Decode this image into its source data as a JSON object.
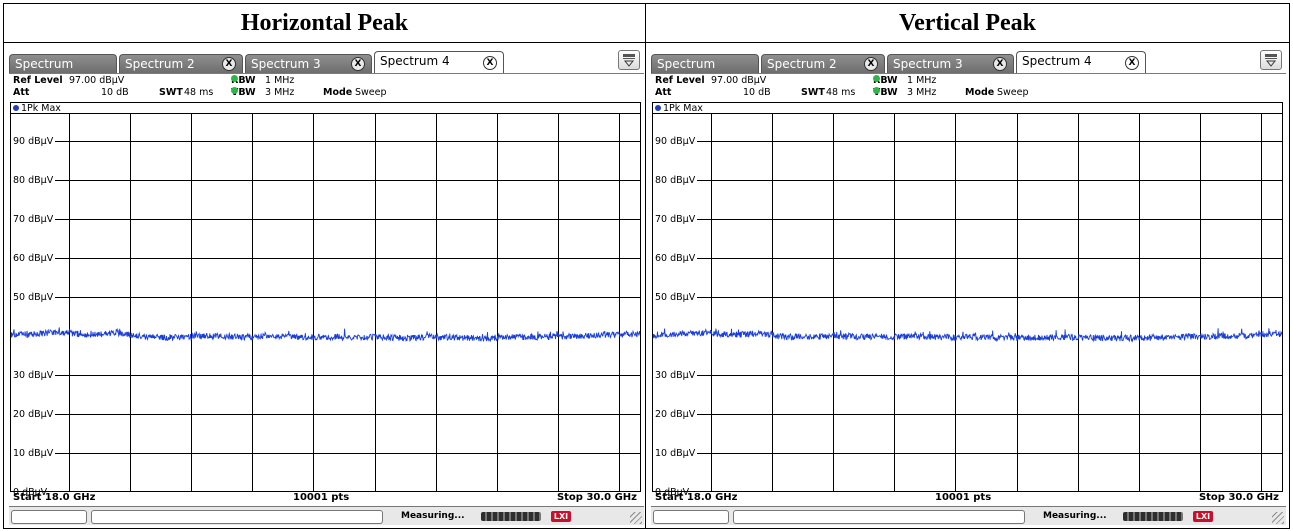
{
  "captions": {
    "left": "Horizontal Peak",
    "right": "Vertical Peak"
  },
  "panels": [
    {
      "id": "horizontal",
      "tabs": [
        {
          "label": "Spectrum",
          "closable": false,
          "active": false
        },
        {
          "label": "Spectrum 2",
          "closable": true,
          "active": false
        },
        {
          "label": "Spectrum 3",
          "closable": true,
          "active": false
        },
        {
          "label": "Spectrum 4",
          "closable": true,
          "active": true
        }
      ],
      "tab_close_glyph": "X",
      "info": {
        "ref_level_label": "Ref Level",
        "ref_level_value": "97.00 dBµV",
        "att_label": "Att",
        "att_value": "10 dB",
        "swt_label": "SWT",
        "swt_value": "48 ms",
        "rbw_label": "RBW",
        "rbw_value": "1 MHz",
        "vbw_label": "VBW",
        "vbw_value": "3 MHz",
        "mode_label": "Mode",
        "mode_value": "Sweep"
      },
      "trace_label": "1Pk Max",
      "y_ticks": [
        "90 dBµV",
        "80 dBµV",
        "70 dBµV",
        "60 dBµV",
        "50 dBµV",
        "30 dBµV",
        "20 dBµV",
        "10 dBµV",
        "0 dBµV"
      ],
      "start_label": "Start 18.0 GHz",
      "points_label": "10001 pts",
      "stop_label": "Stop 30.0 GHz",
      "status_text": "Measuring...",
      "status_led_label": "LXI",
      "icon": "menu-overflow-icon"
    },
    {
      "id": "vertical",
      "tabs": [
        {
          "label": "Spectrum",
          "closable": false,
          "active": false
        },
        {
          "label": "Spectrum 2",
          "closable": true,
          "active": false
        },
        {
          "label": "Spectrum 3",
          "closable": true,
          "active": false
        },
        {
          "label": "Spectrum 4",
          "closable": true,
          "active": true
        }
      ],
      "tab_close_glyph": "X",
      "info": {
        "ref_level_label": "Ref Level",
        "ref_level_value": "97.00 dBµV",
        "att_label": "Att",
        "att_value": "10 dB",
        "swt_label": "SWT",
        "swt_value": "48 ms",
        "rbw_label": "RBW",
        "rbw_value": "1 MHz",
        "vbw_label": "VBW",
        "vbw_value": "3 MHz",
        "mode_label": "Mode",
        "mode_value": "Sweep"
      },
      "trace_label": "1Pk Max",
      "y_ticks": [
        "90 dBµV",
        "80 dBµV",
        "70 dBµV",
        "60 dBµV",
        "50 dBµV",
        "30 dBµV",
        "20 dBµV",
        "10 dBµV",
        "0 dBµV"
      ],
      "start_label": "Start 18.0 GHz",
      "points_label": "10001 pts",
      "stop_label": "Stop 30.0 GHz",
      "status_text": "Measuring...",
      "status_led_label": "LXI",
      "icon": "menu-overflow-icon"
    }
  ],
  "chart_data": [
    {
      "type": "line",
      "title": "Horizontal Peak",
      "xlabel": "",
      "ylabel": "",
      "xlim": [
        18.0,
        30.0
      ],
      "x_unit": "GHz",
      "ylim": [
        0,
        97
      ],
      "y_unit": "dBµV",
      "grid": true,
      "series": [
        {
          "name": "1Pk Max",
          "x": [
            18.0,
            18.5,
            19.0,
            19.5,
            20.0,
            20.5,
            21.0,
            21.5,
            22.0,
            22.5,
            23.0,
            23.5,
            24.0,
            24.5,
            25.0,
            25.5,
            26.0,
            26.5,
            27.0,
            27.5,
            28.0,
            28.5,
            29.0,
            29.5,
            30.0
          ],
          "y": [
            40.3,
            40.6,
            41.0,
            40.2,
            40.9,
            39.8,
            39.7,
            39.9,
            40.0,
            39.8,
            40.1,
            39.7,
            39.8,
            39.6,
            39.7,
            39.5,
            39.8,
            39.6,
            39.4,
            39.7,
            39.8,
            39.9,
            40.1,
            40.4,
            40.5
          ]
        }
      ]
    },
    {
      "type": "line",
      "title": "Vertical Peak",
      "xlabel": "",
      "ylabel": "",
      "xlim": [
        18.0,
        30.0
      ],
      "x_unit": "GHz",
      "ylim": [
        0,
        97
      ],
      "y_unit": "dBµV",
      "grid": true,
      "series": [
        {
          "name": "1Pk Max",
          "x": [
            18.0,
            18.5,
            19.0,
            19.5,
            20.0,
            20.5,
            21.0,
            21.5,
            22.0,
            22.5,
            23.0,
            23.5,
            24.0,
            24.5,
            25.0,
            25.5,
            26.0,
            26.5,
            27.0,
            27.5,
            28.0,
            28.5,
            29.0,
            29.5,
            30.0
          ],
          "y": [
            40.2,
            40.5,
            40.9,
            40.3,
            40.7,
            39.9,
            39.8,
            40.0,
            39.9,
            39.8,
            40.0,
            39.7,
            39.8,
            39.7,
            39.6,
            39.6,
            39.7,
            39.5,
            39.5,
            39.6,
            39.8,
            39.9,
            40.0,
            40.3,
            40.6
          ]
        }
      ]
    }
  ],
  "colors": {
    "trace": "#1a3fd6",
    "grid": "#000000",
    "status_led": "#c8102e",
    "tab_inactive": "#7c7c7c"
  }
}
